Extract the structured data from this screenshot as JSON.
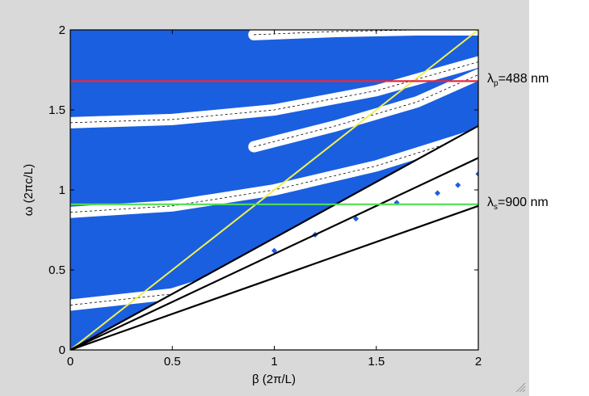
{
  "chart_data": {
    "type": "line",
    "xlabel": "β (2π/L)",
    "ylabel": "ω (2πc/L)",
    "xlim": [
      0,
      2
    ],
    "ylim": [
      0,
      2
    ],
    "xticks": [
      "0",
      "0.5",
      "1",
      "1.5",
      "2"
    ],
    "yticks": [
      "0",
      "0.5",
      "1",
      "1.5",
      "2"
    ],
    "xtick_values": [
      0,
      0.5,
      1,
      1.5,
      2
    ],
    "ytick_values": [
      0,
      0.5,
      1,
      1.5,
      2
    ],
    "grid": false,
    "band_color": "#1a5fe0",
    "light_line_color": "#f0f050",
    "light_lines": [
      {
        "x": [
          0,
          2
        ],
        "y": [
          0,
          2
        ],
        "color": "#f0f050"
      },
      {
        "x": [
          0,
          2
        ],
        "y": [
          0,
          1.4
        ],
        "color": "#000000"
      },
      {
        "x": [
          0,
          2
        ],
        "y": [
          0,
          1.2
        ],
        "color": "#000000"
      },
      {
        "x": [
          0,
          2
        ],
        "y": [
          0,
          0.9
        ],
        "color": "#000000"
      }
    ],
    "horizontal_lines": [
      {
        "y": 1.68,
        "color": "#e8283c",
        "label_prefix": "λ",
        "label_sub": "p",
        "label_suffix": "=488 nm"
      },
      {
        "y": 0.91,
        "color": "#50e050",
        "label_prefix": "λ",
        "label_sub": "s",
        "label_suffix": "=900 nm"
      }
    ],
    "white_gap_bands": [
      {
        "x": [
          0,
          0.5,
          1,
          1.5,
          2
        ],
        "y": [
          1.42,
          1.44,
          1.5,
          1.62,
          1.8
        ]
      },
      {
        "x": [
          0,
          0.5,
          1,
          1.5,
          2
        ],
        "y": [
          0.86,
          0.9,
          1.0,
          1.15,
          1.35
        ]
      },
      {
        "x": [
          0,
          0.5,
          1,
          1.5,
          2
        ],
        "y": [
          0.28,
          0.35,
          0.55,
          0.85,
          1.2
        ]
      },
      {
        "x": [
          0.9,
          1.3,
          1.7,
          2
        ],
        "y": [
          1.27,
          1.4,
          1.55,
          1.72
        ]
      },
      {
        "x": [
          0.9,
          1.3,
          1.7,
          2
        ],
        "y": [
          1.97,
          1.99,
          2.0,
          2.0
        ]
      }
    ],
    "blue_dots": {
      "x": [
        1.0,
        1.2,
        1.4,
        1.6,
        1.8,
        1.9,
        2.0
      ],
      "y": [
        0.62,
        0.72,
        0.82,
        0.92,
        0.98,
        1.03,
        1.1
      ]
    }
  }
}
